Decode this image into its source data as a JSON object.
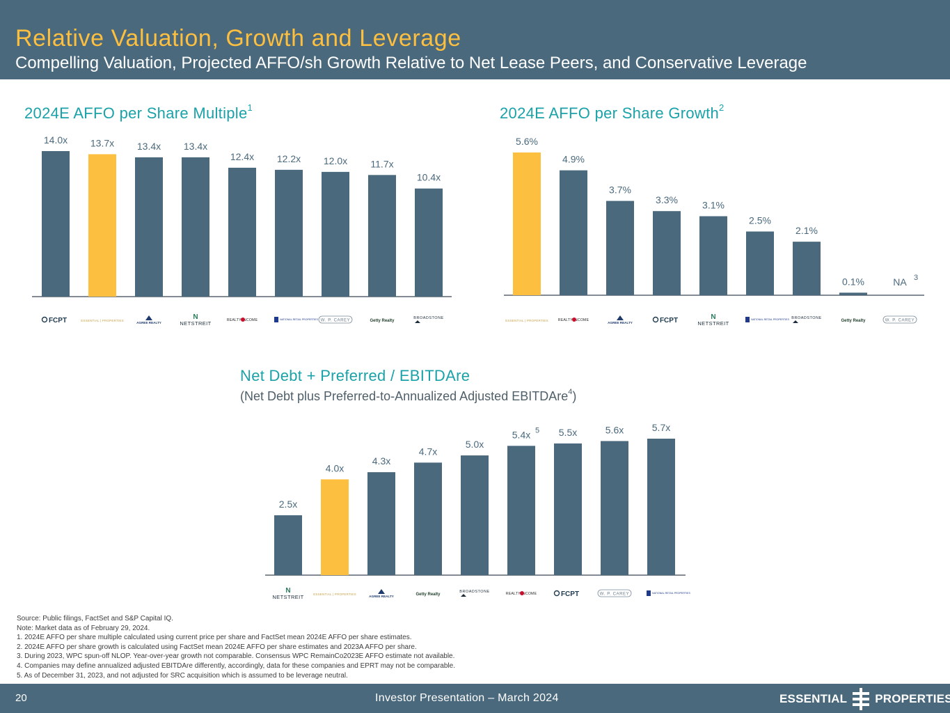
{
  "header": {
    "title": "Relative Valuation, Growth and Leverage",
    "subtitle": "Compelling Valuation, Projected AFFO/sh Growth Relative to Net Lease Peers, and Conservative Leverage"
  },
  "colors": {
    "header_bg": "#4a697d",
    "bar": "#4a697d",
    "highlight": "#fcbf3f",
    "chart_title": "#1aa2a8"
  },
  "charts": {
    "multiple": {
      "title": "2024E AFFO per Share Multiple",
      "footnote": "1"
    },
    "growth": {
      "title": "2024E AFFO per Share Growth",
      "footnote": "2"
    },
    "leverage": {
      "title": "Net Debt + Preferred / EBITDAre",
      "subtitle_pre": "(Net Debt plus Preferred-to-Annualized Adjusted EBITDAre",
      "subtitle_sup": "4",
      "subtitle_post": ")"
    }
  },
  "chart_data": [
    {
      "type": "bar",
      "title": "2024E AFFO per Share Multiple",
      "categories": [
        "FCPT",
        "ESSENTIAL PROPERTIES",
        "AGREE REALTY",
        "NETSTREIT",
        "REALTY INCOME",
        "NATIONAL RETAIL PROPERTIES",
        "W. P. CAREY",
        "Getty Realty",
        "BROADSTONE"
      ],
      "values": [
        14.0,
        13.7,
        13.4,
        13.4,
        12.4,
        12.2,
        12.0,
        11.7,
        10.4
      ],
      "labels": [
        "14.0x",
        "13.7x",
        "13.4x",
        "13.4x",
        "12.4x",
        "12.2x",
        "12.0x",
        "11.7x",
        "10.4x"
      ],
      "highlight_index": 1,
      "ylim": [
        0,
        14.0
      ],
      "annotations": []
    },
    {
      "type": "bar",
      "title": "2024E AFFO per Share Growth",
      "categories": [
        "ESSENTIAL PROPERTIES",
        "REALTY INCOME",
        "AGREE REALTY",
        "FCPT",
        "NETSTREIT",
        "NATIONAL RETAIL PROPERTIES",
        "BROADSTONE",
        "Getty Realty",
        "W. P. CAREY"
      ],
      "values": [
        5.6,
        4.9,
        3.7,
        3.3,
        3.1,
        2.5,
        2.1,
        0.1,
        null
      ],
      "labels": [
        "5.6%",
        "4.9%",
        "3.7%",
        "3.3%",
        "3.1%",
        "2.5%",
        "2.1%",
        "0.1%",
        "NA"
      ],
      "highlight_index": 0,
      "ylim": [
        0,
        5.6
      ],
      "annotations": [
        {
          "index": 8,
          "sup": "3"
        }
      ]
    },
    {
      "type": "bar",
      "title": "Net Debt + Preferred / EBITDAre",
      "categories": [
        "NETSTREIT",
        "ESSENTIAL PROPERTIES",
        "AGREE REALTY",
        "Getty Realty",
        "BROADSTONE",
        "REALTY INCOME",
        "FCPT",
        "W. P. CAREY",
        "NATIONAL RETAIL PROPERTIES"
      ],
      "values": [
        2.5,
        4.0,
        4.3,
        4.7,
        5.0,
        5.4,
        5.5,
        5.6,
        5.7
      ],
      "labels": [
        "2.5x",
        "4.0x",
        "4.3x",
        "4.7x",
        "5.0x",
        "5.4x",
        "5.5x",
        "5.6x",
        "5.7x"
      ],
      "highlight_index": 1,
      "ylim": [
        0,
        5.7
      ],
      "annotations": [
        {
          "index": 5,
          "sup": "5"
        }
      ]
    }
  ],
  "logos": {
    "fcpt": "FCPT",
    "essential": "ESSENTIAL | PROPERTIES",
    "agree": "AGREE REALTY",
    "netstreit": "NETSTREIT",
    "realty_income": "REALTY INCOME",
    "nnn": "NATIONAL RETAIL PROPERTIES",
    "wpc": "W. P. CAREY",
    "getty": "Getty Realty",
    "broadstone": "BROADSTONE"
  },
  "logo_order": [
    [
      "fcpt",
      "essential",
      "agree",
      "netstreit",
      "realty_income",
      "nnn",
      "wpc",
      "getty",
      "broadstone"
    ],
    [
      "essential",
      "realty_income",
      "agree",
      "fcpt",
      "netstreit",
      "nnn",
      "broadstone",
      "getty",
      "wpc"
    ],
    [
      "netstreit",
      "essential",
      "agree",
      "getty",
      "broadstone",
      "realty_income",
      "fcpt",
      "wpc",
      "nnn"
    ]
  ],
  "notes": [
    "Source: Public filings, FactSet and S&P Capital IQ.",
    "Note: Market data as of February 29, 2024.",
    "1.  2024E AFFO per share multiple calculated using current price per share and FactSet mean 2024E AFFO per share estimates.",
    "2.  2024E AFFO per share growth is calculated using FactSet mean 2024E AFFO per share estimates and 2023A AFFO per share.",
    "3.  During 2023, WPC spun-off NLOP. Year-over-year growth not comparable. Consensus WPC RemainCo2023E AFFO estimate not available.",
    "4.  Companies may define annualized adjusted EBITDAre differently, accordingly, data for these companies and EPRT may not be comparable.",
    "5.  As of December 31, 2023, and not adjusted for SRC acquisition which is assumed to be leverage neutral."
  ],
  "footer": {
    "page_number": "20",
    "presentation": "Investor Presentation – March 2024",
    "brand_left": "ESSENTIAL",
    "brand_right": "PROPERTIES"
  }
}
